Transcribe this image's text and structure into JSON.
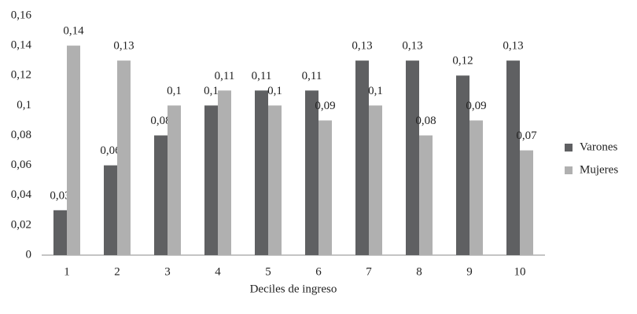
{
  "chart_data": {
    "type": "bar",
    "x_label": "Deciles de ingreso",
    "categories": [
      "1",
      "2",
      "3",
      "4",
      "5",
      "6",
      "7",
      "8",
      "9",
      "10"
    ],
    "series": [
      {
        "name": "Varones",
        "color": "#5f6062",
        "values": [
          0.03,
          0.06,
          0.08,
          0.1,
          0.11,
          0.11,
          0.13,
          0.13,
          0.12,
          0.13
        ],
        "value_labels": [
          "0,03",
          "0,06",
          "0,08",
          "0,1",
          "0,11",
          "0,11",
          "0,13",
          "0,13",
          "0,12",
          "0,13"
        ]
      },
      {
        "name": "Mujeres",
        "color": "#b0b0b0",
        "values": [
          0.14,
          0.13,
          0.1,
          0.11,
          0.1,
          0.09,
          0.1,
          0.08,
          0.09,
          0.07
        ],
        "value_labels": [
          "0,14",
          "0,13",
          "0,1",
          "0,11",
          "0,1",
          "0,09",
          "0,1",
          "0,08",
          "0,09",
          "0,07"
        ]
      }
    ],
    "ylim": [
      0,
      0.16
    ],
    "yticks": [
      0,
      {
        "value": 0.02,
        "label": "0,02"
      },
      {
        "value": 0.04,
        "label": "0,04"
      },
      {
        "value": 0.06,
        "label": "0,06"
      },
      {
        "value": 0.08,
        "label": "0,08"
      },
      {
        "value": 0.1,
        "label": "0,1"
      },
      {
        "value": 0.12,
        "label": "0,12"
      },
      {
        "value": 0.14,
        "label": "0,14"
      },
      {
        "value": 0.16,
        "label": "0,16"
      }
    ],
    "grid": false,
    "legend": "right"
  }
}
